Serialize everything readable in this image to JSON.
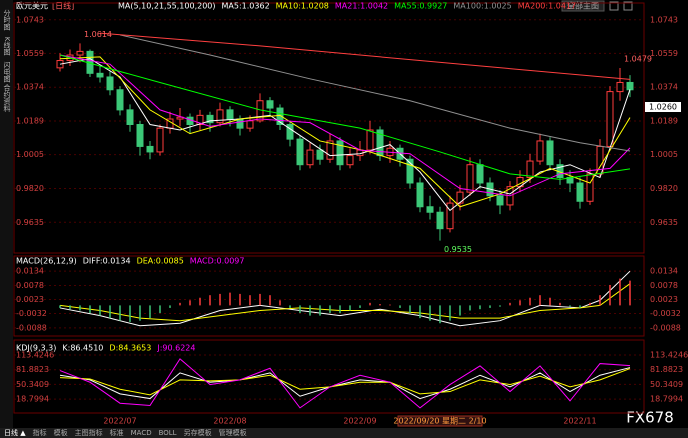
{
  "header": {
    "symbol": "欧元美元",
    "period": "[日线]",
    "button": "全部主图"
  },
  "sidebar": [
    "分时图",
    "K线图",
    "闪电图",
    "合约资料"
  ],
  "cursor": {
    "price": "1.0260",
    "date": "2022/09/20 星期二 2/10"
  },
  "chart_data": [
    {
      "type": "candlestick",
      "title": "MA(5,10,21,55,100,200)",
      "categories": [
        null,
        null,
        null,
        null,
        null,
        null,
        "2022/07",
        null,
        null,
        null,
        null,
        null,
        null,
        null,
        null,
        null,
        null,
        "2022/08",
        null,
        null,
        null,
        null,
        null,
        null,
        null,
        null,
        null,
        null,
        null,
        null,
        "2022/09",
        null,
        null,
        null,
        null,
        null,
        null,
        null,
        null,
        null,
        null,
        null,
        null,
        null,
        null,
        null,
        null,
        null,
        null,
        null,
        null,
        null,
        "2022/11",
        null,
        null,
        null,
        null,
        null
      ],
      "open": [
        1.048,
        1.052,
        1.055,
        1.057,
        1.045,
        1.043,
        1.036,
        1.025,
        1.017,
        1.005,
        1.002,
        1.015,
        1.02,
        1.021,
        1.017,
        1.022,
        1.018,
        1.025,
        1.02,
        1.015,
        1.019,
        1.03,
        1.026,
        1.017,
        1.009,
        0.995,
        1.003,
        0.998,
        1.008,
        0.995,
        1.0,
        1.003,
        1.014,
        1.0,
        1.004,
        0.998,
        0.985,
        0.972,
        0.969,
        0.96,
        0.974,
        0.98,
        0.995,
        0.985,
        0.978,
        0.973,
        0.983,
        0.988,
        0.997,
        1.008,
        0.995,
        0.988,
        0.985,
        0.975,
        0.99,
        1.005,
        1.035,
        1.04
      ],
      "high": [
        1.056,
        1.058,
        1.0614,
        1.058,
        1.049,
        1.046,
        1.038,
        1.028,
        1.019,
        1.008,
        1.017,
        1.024,
        1.026,
        1.023,
        1.025,
        1.024,
        1.029,
        1.027,
        1.022,
        1.022,
        1.034,
        1.032,
        1.028,
        1.019,
        1.011,
        1.007,
        1.006,
        1.012,
        1.01,
        1.004,
        1.008,
        1.019,
        1.016,
        1.008,
        1.006,
        1.0,
        0.988,
        0.978,
        0.972,
        0.978,
        0.984,
        0.999,
        0.998,
        0.988,
        0.981,
        0.986,
        0.992,
        1.001,
        1.012,
        1.01,
        0.998,
        0.992,
        0.988,
        0.993,
        1.009,
        1.038,
        1.0479,
        1.044
      ],
      "low": [
        1.046,
        1.049,
        1.051,
        1.043,
        1.04,
        1.033,
        1.022,
        1.013,
        1.0,
        0.998,
        1.0,
        1.012,
        1.016,
        1.012,
        1.014,
        1.013,
        1.016,
        1.016,
        1.011,
        1.013,
        1.018,
        1.022,
        1.014,
        1.005,
        0.992,
        0.993,
        0.995,
        0.996,
        0.992,
        0.993,
        0.997,
        1.001,
        0.997,
        0.996,
        0.994,
        0.982,
        0.969,
        0.965,
        0.9535,
        0.958,
        0.97,
        0.978,
        0.982,
        0.975,
        0.968,
        0.97,
        0.98,
        0.985,
        0.995,
        0.992,
        0.984,
        0.98,
        0.971,
        0.973,
        0.988,
        1.003,
        1.03,
        1.032
      ],
      "close": [
        1.052,
        1.055,
        1.057,
        1.045,
        1.043,
        1.036,
        1.025,
        1.017,
        1.005,
        1.002,
        1.015,
        1.02,
        1.021,
        1.017,
        1.022,
        1.018,
        1.025,
        1.02,
        1.015,
        1.019,
        1.03,
        1.026,
        1.017,
        1.009,
        0.995,
        1.003,
        0.998,
        1.008,
        0.995,
        1.0,
        1.003,
        1.014,
        1.0,
        1.004,
        0.998,
        0.985,
        0.972,
        0.969,
        0.96,
        0.974,
        0.98,
        0.995,
        0.985,
        0.978,
        0.973,
        0.983,
        0.988,
        0.997,
        1.008,
        0.995,
        0.988,
        0.985,
        0.975,
        0.99,
        1.005,
        1.035,
        1.04,
        1.036
      ],
      "up_color": "#ff3c3c",
      "down_color": "#3cc878",
      "ylim": [
        0.9467,
        1.078
      ],
      "yticks": [
        1.0743,
        1.0559,
        1.0374,
        1.0189,
        1.0005,
        {
          "value": 0.982,
          "label": "0.9820"
        },
        0.9635
      ],
      "series": [
        {
          "name": "MA5:1.0362",
          "color": "#ffffff",
          "x": [
            0,
            3,
            6,
            9,
            12,
            15,
            18,
            21,
            24,
            27,
            30,
            33,
            36,
            39,
            42,
            45,
            48,
            51,
            54,
            57
          ],
          "values": [
            1.05,
            1.053,
            1.043,
            1.017,
            1.014,
            1.019,
            1.02,
            1.022,
            1.011,
            1.0,
            1.001,
            1.006,
            0.991,
            0.97,
            0.983,
            0.979,
            0.991,
            0.995,
            0.988,
            1.0362
          ]
        },
        {
          "name": "MA10:1.0208",
          "color": "#ffff00",
          "x": [
            0,
            4,
            9,
            13,
            18,
            22,
            26,
            31,
            36,
            40,
            44,
            49,
            53,
            57
          ],
          "values": [
            1.053,
            1.054,
            1.025,
            1.012,
            1.02,
            1.022,
            1.008,
            1.002,
            0.993,
            0.972,
            0.979,
            0.993,
            0.985,
            1.0208
          ]
        },
        {
          "name": "MA21:1.0042",
          "color": "#ff00ff",
          "x": [
            0,
            5,
            10,
            15,
            20,
            25,
            30,
            35,
            40,
            45,
            50,
            55,
            57
          ],
          "values": [
            1.055,
            1.05,
            1.025,
            1.016,
            1.02,
            1.018,
            1.003,
            1.001,
            0.982,
            0.978,
            0.99,
            0.993,
            1.0042
          ]
        },
        {
          "name": "MA55:0.9927",
          "color": "#00ff00",
          "x": [
            0,
            10,
            20,
            30,
            38,
            45,
            50,
            57
          ],
          "values": [
            1.055,
            1.04,
            1.025,
            1.015,
            1.002,
            0.99,
            0.987,
            0.9927
          ]
        },
        {
          "name": "MA100:1.0025",
          "color": "#909090",
          "x": [
            6,
            15,
            25,
            35,
            45,
            52,
            57
          ],
          "values": [
            1.066,
            1.055,
            1.042,
            1.03,
            1.015,
            1.007,
            1.0025
          ]
        },
        {
          "name": "MA200:1.0417",
          "color": "#ff4040",
          "x": [
            4,
            20,
            40,
            57
          ],
          "values": [
            1.067,
            1.06,
            1.05,
            1.0417
          ]
        }
      ]
    },
    {
      "type": "macd",
      "title": "MACD(26,12,9)",
      "ylim": [
        -0.012,
        0.017
      ],
      "yticks": [
        0.0134,
        0.0078,
        0.0023,
        -0.0032,
        -0.0088
      ],
      "up_color": "#ff3c3c",
      "down_color": "#3cc878",
      "series": [
        {
          "name": "DIFF:0.0134",
          "color": "#ffffff",
          "x": [
            0,
            4,
            8,
            12,
            16,
            20,
            24,
            28,
            32,
            36,
            40,
            44,
            48,
            52,
            54,
            57
          ],
          "values": [
            -0.001,
            -0.004,
            -0.008,
            -0.007,
            -0.002,
            0.0,
            -0.002,
            -0.004,
            -0.0015,
            -0.004,
            -0.008,
            -0.006,
            0.0,
            -0.001,
            0.002,
            0.0134
          ]
        },
        {
          "name": "DEA:0.0085",
          "color": "#ffff00",
          "x": [
            0,
            4,
            8,
            12,
            16,
            20,
            24,
            28,
            32,
            36,
            40,
            44,
            48,
            52,
            54,
            57
          ],
          "values": [
            0.0,
            -0.002,
            -0.005,
            -0.006,
            -0.004,
            -0.002,
            -0.001,
            -0.002,
            -0.002,
            -0.003,
            -0.005,
            -0.005,
            -0.002,
            -0.001,
            0.0,
            0.0085
          ]
        },
        {
          "name": "MACD:0.0097",
          "color": "#ff00ff",
          "values": [
            -0.001,
            -0.0015,
            -0.002,
            -0.003,
            -0.004,
            -0.005,
            -0.006,
            -0.0065,
            -0.006,
            -0.005,
            -0.003,
            -0.001,
            0.001,
            0.002,
            0.003,
            0.004,
            0.0045,
            0.005,
            0.0045,
            0.004,
            0.0045,
            0.004,
            0.002,
            -0.001,
            -0.003,
            -0.004,
            -0.004,
            -0.003,
            -0.003,
            -0.002,
            -0.001,
            0.001,
            0.0005,
            0.0003,
            -0.001,
            -0.003,
            -0.005,
            -0.006,
            -0.007,
            -0.006,
            -0.004,
            -0.002,
            -0.0015,
            -0.001,
            -0.0005,
            0.001,
            0.002,
            0.003,
            0.004,
            0.003,
            0.001,
            -0.0005,
            -0.001,
            0.001,
            0.004,
            0.008,
            0.0105,
            0.0097
          ]
        }
      ]
    },
    {
      "type": "line",
      "title": "KDJ(9,3,3)",
      "ylim": [
        -11,
        132.7
      ],
      "yticks": [
        113.4246,
        81.8823,
        50.3409,
        18.7994
      ],
      "series": [
        {
          "name": "K:86.4510",
          "color": "#ffffff",
          "x": [
            0,
            3,
            6,
            9,
            12,
            15,
            18,
            21,
            24,
            27,
            30,
            33,
            36,
            39,
            42,
            45,
            48,
            51,
            54,
            57
          ],
          "values": [
            70,
            60,
            30,
            20,
            75,
            55,
            60,
            75,
            25,
            45,
            60,
            55,
            20,
            40,
            70,
            45,
            75,
            35,
            70,
            86.451
          ]
        },
        {
          "name": "D:84.3653",
          "color": "#ffff00",
          "x": [
            0,
            3,
            6,
            9,
            12,
            15,
            18,
            21,
            24,
            27,
            30,
            33,
            36,
            39,
            42,
            45,
            48,
            51,
            54,
            57
          ],
          "values": [
            65,
            62,
            40,
            28,
            60,
            58,
            60,
            70,
            40,
            45,
            55,
            55,
            30,
            35,
            60,
            50,
            68,
            45,
            60,
            84.3653
          ]
        },
        {
          "name": "J:90.6224",
          "color": "#ff00ff",
          "x": [
            0,
            3,
            6,
            9,
            12,
            15,
            18,
            21,
            24,
            27,
            30,
            33,
            36,
            39,
            42,
            45,
            48,
            51,
            54,
            57
          ],
          "values": [
            80,
            55,
            10,
            5,
            105,
            50,
            60,
            85,
            0,
            45,
            70,
            55,
            0,
            50,
            90,
            35,
            90,
            15,
            95,
            90.6224
          ]
        }
      ]
    }
  ],
  "footer": {
    "tabs": [
      "日线 ▲",
      "指标",
      "模板",
      "主图指标",
      "标准",
      "MACD",
      "BOLL",
      "另存模板",
      "管理模板"
    ],
    "watermark": "FX678"
  }
}
